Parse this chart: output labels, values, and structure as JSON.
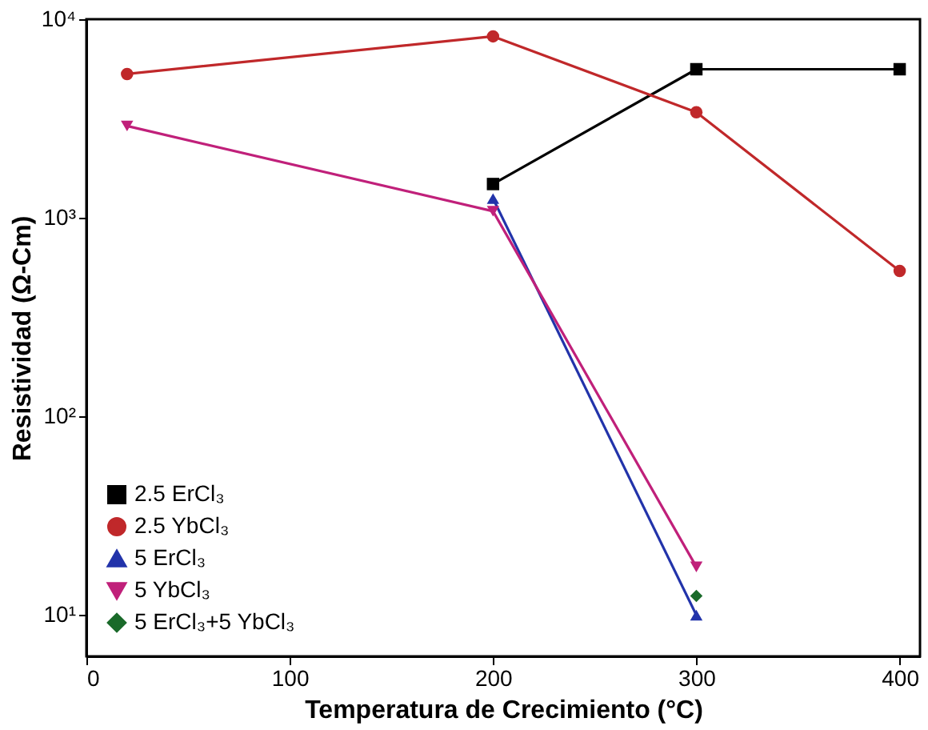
{
  "chart_data": {
    "type": "line",
    "xlabel": "Temperatura de Crecimiento (°C)",
    "ylabel": "Resistividad (Ω-Cm)",
    "log": "y",
    "xlim": [
      0,
      410
    ],
    "xticks": [
      0,
      100,
      200,
      300,
      400
    ],
    "ylim": [
      6.2,
      10000
    ],
    "yticks": [
      {
        "value": 10,
        "label": "10¹"
      },
      {
        "value": 100,
        "label": "10²"
      },
      {
        "value": 1000,
        "label": "10³"
      },
      {
        "value": 10000,
        "label": "10⁴"
      }
    ],
    "grid": false,
    "legend": "bottom left",
    "line_style": "solid",
    "series": [
      {
        "name": "2.5 ErCl₃",
        "color": "#000000",
        "marker": "square",
        "x": [
          200,
          300,
          400
        ],
        "values": [
          1480,
          5600,
          5600
        ]
      },
      {
        "name": "2.5 YbCl₃",
        "color": "#c0282a",
        "marker": "circle",
        "x": [
          20,
          200,
          300,
          400
        ],
        "values": [
          5300,
          8200,
          3400,
          540
        ]
      },
      {
        "name": "5 ErCl₃",
        "color": "#2233aa",
        "marker": "triangle",
        "x": [
          200,
          300
        ],
        "values": [
          1250,
          10
        ]
      },
      {
        "name": "5 YbCl₃",
        "color": "#c0207a",
        "marker": "triangle-down",
        "x": [
          20,
          200,
          300
        ],
        "values": [
          2900,
          1080,
          17.5
        ]
      },
      {
        "name": "5 ErCl₃+5 YbCl₃",
        "color": "#1a6a2a",
        "marker": "diamond",
        "x": [
          300
        ],
        "values": [
          12.5
        ]
      }
    ]
  }
}
